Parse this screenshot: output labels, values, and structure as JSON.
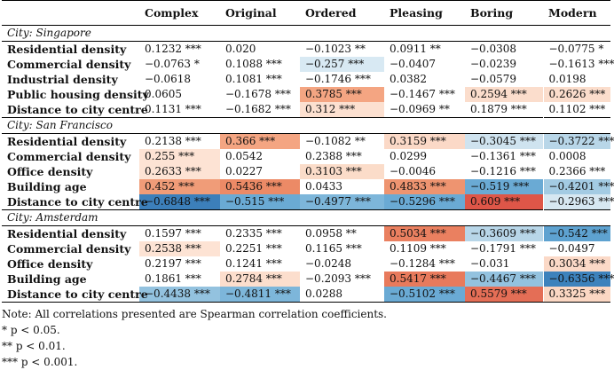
{
  "header": [
    "",
    "Complex",
    "Original",
    "Ordered",
    "Pleasing",
    "Boring",
    "Modern"
  ],
  "sections": [
    {
      "name": "City: Singapore",
      "rows": [
        {
          "label": "Residential density",
          "cells": [
            {
              "v": "0.1232 ***",
              "bg": ""
            },
            {
              "v": "0.020",
              "bg": ""
            },
            {
              "v": "−0.1023 **",
              "bg": ""
            },
            {
              "v": "0.0911 **",
              "bg": ""
            },
            {
              "v": "−0.0308",
              "bg": ""
            },
            {
              "v": "−0.0775 *",
              "bg": ""
            }
          ]
        },
        {
          "label": "Commercial density",
          "cells": [
            {
              "v": "−0.0763 *",
              "bg": ""
            },
            {
              "v": "0.1088 ***",
              "bg": ""
            },
            {
              "v": "−0.257 ***",
              "bg": "#d8e9f3"
            },
            {
              "v": "−0.0407",
              "bg": ""
            },
            {
              "v": "−0.0239",
              "bg": ""
            },
            {
              "v": "−0.1613 ***",
              "bg": ""
            }
          ]
        },
        {
          "label": "Industrial density",
          "cells": [
            {
              "v": "−0.0618",
              "bg": ""
            },
            {
              "v": "0.1081 ***",
              "bg": ""
            },
            {
              "v": "−0.1746 ***",
              "bg": ""
            },
            {
              "v": "0.0382",
              "bg": ""
            },
            {
              "v": "−0.0579",
              "bg": ""
            },
            {
              "v": "0.0198",
              "bg": ""
            }
          ]
        },
        {
          "label": "Public housing density",
          "cells": [
            {
              "v": "0.0605",
              "bg": ""
            },
            {
              "v": "−0.1678 ***",
              "bg": ""
            },
            {
              "v": "0.3785 ***",
              "bg": "#f4a582"
            },
            {
              "v": "−0.1467 ***",
              "bg": ""
            },
            {
              "v": "0.2594 ***",
              "bg": "#fbddcc"
            },
            {
              "v": "0.2626 ***",
              "bg": "#fbddcc"
            }
          ]
        },
        {
          "label": "Distance to city centre",
          "cells": [
            {
              "v": "0.1131 ***",
              "bg": ""
            },
            {
              "v": "−0.1682 ***",
              "bg": ""
            },
            {
              "v": "0.312 ***",
              "bg": "#fce0d0"
            },
            {
              "v": "−0.0969 **",
              "bg": ""
            },
            {
              "v": "0.1879 ***",
              "bg": ""
            },
            {
              "v": "0.1102 ***",
              "bg": ""
            }
          ]
        }
      ]
    },
    {
      "name": "City: San Francisco",
      "rows": [
        {
          "label": "Residential density",
          "cells": [
            {
              "v": "0.2138 ***",
              "bg": ""
            },
            {
              "v": "0.366 ***",
              "bg": "#f4a582"
            },
            {
              "v": "−0.1082 **",
              "bg": ""
            },
            {
              "v": "0.3159 ***",
              "bg": "#fbd9c7"
            },
            {
              "v": "−0.3045 ***",
              "bg": "#cfe3ef"
            },
            {
              "v": "−0.3722 ***",
              "bg": "#b8d6e8"
            }
          ]
        },
        {
          "label": "Commercial density",
          "cells": [
            {
              "v": "0.255 ***",
              "bg": "#fde3d4"
            },
            {
              "v": "0.0542",
              "bg": ""
            },
            {
              "v": "0.2388 ***",
              "bg": ""
            },
            {
              "v": "0.0299",
              "bg": ""
            },
            {
              "v": "−0.1361 ***",
              "bg": ""
            },
            {
              "v": "0.0008",
              "bg": ""
            }
          ]
        },
        {
          "label": "Office density",
          "cells": [
            {
              "v": "0.2633 ***",
              "bg": "#fde3d4"
            },
            {
              "v": "0.0227",
              "bg": ""
            },
            {
              "v": "0.3103 ***",
              "bg": "#fbdcc9"
            },
            {
              "v": "−0.0046",
              "bg": ""
            },
            {
              "v": "−0.1216 ***",
              "bg": ""
            },
            {
              "v": "0.2366 ***",
              "bg": ""
            }
          ]
        },
        {
          "label": "Building age",
          "cells": [
            {
              "v": "0.452 ***",
              "bg": "#f09c78"
            },
            {
              "v": "0.5436 ***",
              "bg": "#ec8a66"
            },
            {
              "v": "0.0433",
              "bg": ""
            },
            {
              "v": "0.4833 ***",
              "bg": "#ee9470"
            },
            {
              "v": "−0.519 ***",
              "bg": "#6aaad4"
            },
            {
              "v": "−0.4201 ***",
              "bg": "#a3cbe3"
            }
          ]
        },
        {
          "label": "Distance to city centre",
          "cells": [
            {
              "v": "−0.6848 ***",
              "bg": "#3c7fba"
            },
            {
              "v": "−0.515 ***",
              "bg": "#6aaad4"
            },
            {
              "v": "−0.4977 ***",
              "bg": "#7db6da"
            },
            {
              "v": "−0.5296 ***",
              "bg": "#6aaad4"
            },
            {
              "v": "0.609 ***",
              "bg": "#de5648"
            },
            {
              "v": "−0.2963 ***",
              "bg": "#d6e7f1"
            }
          ]
        }
      ]
    },
    {
      "name": "City: Amsterdam",
      "rows": [
        {
          "label": "Residential density",
          "cells": [
            {
              "v": "0.1597 ***",
              "bg": ""
            },
            {
              "v": "0.2335 ***",
              "bg": ""
            },
            {
              "v": "0.0958 **",
              "bg": ""
            },
            {
              "v": "0.5034 ***",
              "bg": "#ea8060"
            },
            {
              "v": "−0.3609 ***",
              "bg": "#b8d6e8"
            },
            {
              "v": "−0.542 ***",
              "bg": "#5ea2d0"
            }
          ]
        },
        {
          "label": "Commercial density",
          "cells": [
            {
              "v": "0.2538 ***",
              "bg": "#fde3d4"
            },
            {
              "v": "0.2251 ***",
              "bg": ""
            },
            {
              "v": "0.1165 ***",
              "bg": ""
            },
            {
              "v": "0.1109 ***",
              "bg": ""
            },
            {
              "v": "−0.1791 ***",
              "bg": ""
            },
            {
              "v": "−0.0497",
              "bg": ""
            }
          ]
        },
        {
          "label": "Office density",
          "cells": [
            {
              "v": "0.2197 ***",
              "bg": ""
            },
            {
              "v": "0.1241 ***",
              "bg": ""
            },
            {
              "v": "−0.0248",
              "bg": ""
            },
            {
              "v": "−0.1284 ***",
              "bg": ""
            },
            {
              "v": "−0.031",
              "bg": ""
            },
            {
              "v": "0.3034 ***",
              "bg": "#fbd9c7"
            }
          ]
        },
        {
          "label": "Building age",
          "cells": [
            {
              "v": "0.1861 ***",
              "bg": ""
            },
            {
              "v": "0.2784 ***",
              "bg": "#fcdecd"
            },
            {
              "v": "−0.2093 ***",
              "bg": ""
            },
            {
              "v": "0.5417 ***",
              "bg": "#e87a5c"
            },
            {
              "v": "−0.4467 ***",
              "bg": "#93c2df"
            },
            {
              "v": "−0.6356 ***",
              "bg": "#3d82bc"
            }
          ]
        },
        {
          "label": "Distance to city centre",
          "cells": [
            {
              "v": "−0.4438 ***",
              "bg": "#93c2df"
            },
            {
              "v": "−0.4811 ***",
              "bg": "#7db6da"
            },
            {
              "v": "0.0288",
              "bg": ""
            },
            {
              "v": "−0.5102 ***",
              "bg": "#6aaad4"
            },
            {
              "v": "0.5579 ***",
              "bg": "#e46e56"
            },
            {
              "v": "0.3325 ***",
              "bg": "#fbd7c3"
            }
          ]
        }
      ]
    }
  ],
  "notes": [
    "Note: All correlations presented are Spearman correlation coefficients.",
    "*  p < 0.05.",
    "**  p < 0.01.",
    "***  p < 0.001."
  ]
}
